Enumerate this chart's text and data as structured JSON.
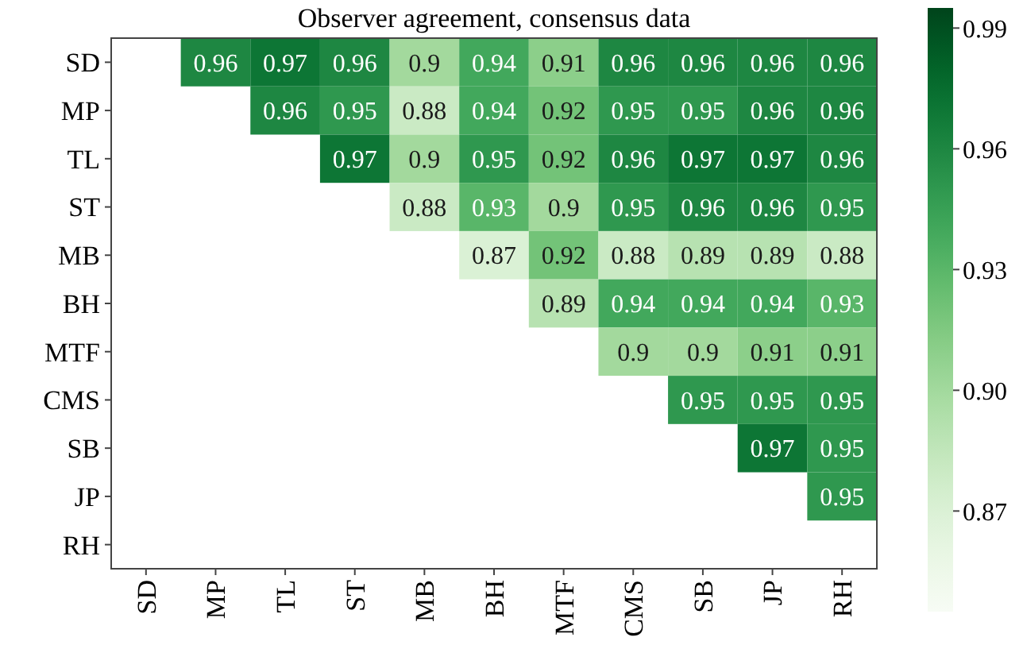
{
  "chart_data": {
    "type": "heatmap",
    "title": "Observer agreement, consensus data",
    "categories": [
      "SD",
      "MP",
      "TL",
      "ST",
      "MB",
      "BH",
      "MTF",
      "CMS",
      "SB",
      "JP",
      "RH"
    ],
    "y_categories": [
      "SD",
      "MP",
      "TL",
      "ST",
      "MB",
      "BH",
      "MTF",
      "CMS",
      "SB",
      "JP",
      "RH"
    ],
    "cells": [
      [
        null,
        0.96,
        0.97,
        0.96,
        0.9,
        0.94,
        0.91,
        0.96,
        0.96,
        0.96,
        0.96
      ],
      [
        null,
        null,
        0.96,
        0.95,
        0.88,
        0.94,
        0.92,
        0.95,
        0.95,
        0.96,
        0.96
      ],
      [
        null,
        null,
        null,
        0.97,
        0.9,
        0.95,
        0.92,
        0.96,
        0.97,
        0.97,
        0.96
      ],
      [
        null,
        null,
        null,
        null,
        0.88,
        0.93,
        0.9,
        0.95,
        0.96,
        0.96,
        0.95
      ],
      [
        null,
        null,
        null,
        null,
        null,
        0.87,
        0.92,
        0.88,
        0.89,
        0.89,
        0.88
      ],
      [
        null,
        null,
        null,
        null,
        null,
        null,
        0.89,
        0.94,
        0.94,
        0.94,
        0.93
      ],
      [
        null,
        null,
        null,
        null,
        null,
        null,
        null,
        0.9,
        0.9,
        0.91,
        0.91
      ],
      [
        null,
        null,
        null,
        null,
        null,
        null,
        null,
        null,
        0.95,
        0.95,
        0.95
      ],
      [
        null,
        null,
        null,
        null,
        null,
        null,
        null,
        null,
        null,
        0.97,
        0.95
      ],
      [
        null,
        null,
        null,
        null,
        null,
        null,
        null,
        null,
        null,
        null,
        0.95
      ],
      [
        null,
        null,
        null,
        null,
        null,
        null,
        null,
        null,
        null,
        null,
        null
      ]
    ],
    "data_labels": true,
    "clim": [
      0.845,
      0.995
    ],
    "cticks": [
      {
        "value": 0.87,
        "label": "0.87"
      },
      {
        "value": 0.9,
        "label": "0.90"
      },
      {
        "value": 0.93,
        "label": "0.93"
      },
      {
        "value": 0.96,
        "label": "0.96"
      },
      {
        "value": 0.99,
        "label": "0.99"
      }
    ]
  }
}
